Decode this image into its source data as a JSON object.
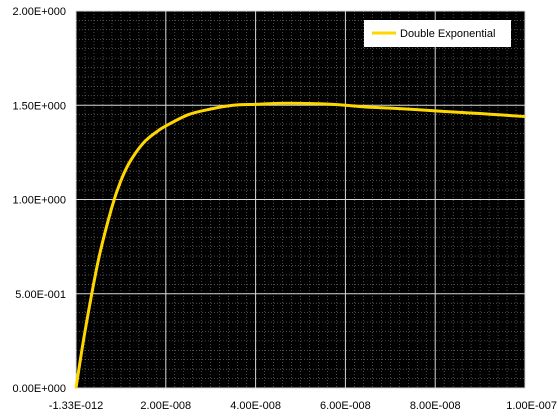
{
  "chart_data": {
    "type": "line",
    "xlim": [
      0,
      1e-07
    ],
    "ylim": [
      0,
      2
    ],
    "x_tick_labels": [
      "-1.33E-012",
      "2.00E-008",
      "4.00E-008",
      "6.00E-008",
      "8.00E-008",
      "1.00E-007"
    ],
    "x_tick_values": [
      0,
      2e-08,
      4e-08,
      6e-08,
      8e-08,
      1e-07
    ],
    "y_tick_labels": [
      "0.00E+000",
      "5.00E-001",
      "1.00E+000",
      "1.50E+000",
      "2.00E+000"
    ],
    "y_tick_values": [
      0,
      0.5,
      1.0,
      1.5,
      2.0
    ],
    "grid": true,
    "legend_position": "top-right",
    "series": [
      {
        "name": "Double Exponential",
        "color": "#FFD700",
        "x": [
          0,
          2e-09,
          5e-09,
          8e-09,
          1e-08,
          1.2e-08,
          1.5e-08,
          1.8e-08,
          2e-08,
          2.5e-08,
          3e-08,
          3.5e-08,
          4e-08,
          4.5e-08,
          5e-08,
          5.5e-08,
          6e-08,
          6.5e-08,
          7e-08,
          7.5e-08,
          8e-08,
          8.5e-08,
          9e-08,
          9.5e-08,
          1e-07
        ],
        "y": [
          0,
          0.3,
          0.68,
          0.96,
          1.1,
          1.2,
          1.3,
          1.36,
          1.39,
          1.45,
          1.48,
          1.5,
          1.505,
          1.51,
          1.51,
          1.507,
          1.5,
          1.49,
          1.485,
          1.478,
          1.47,
          1.463,
          1.456,
          1.448,
          1.44
        ]
      }
    ]
  }
}
